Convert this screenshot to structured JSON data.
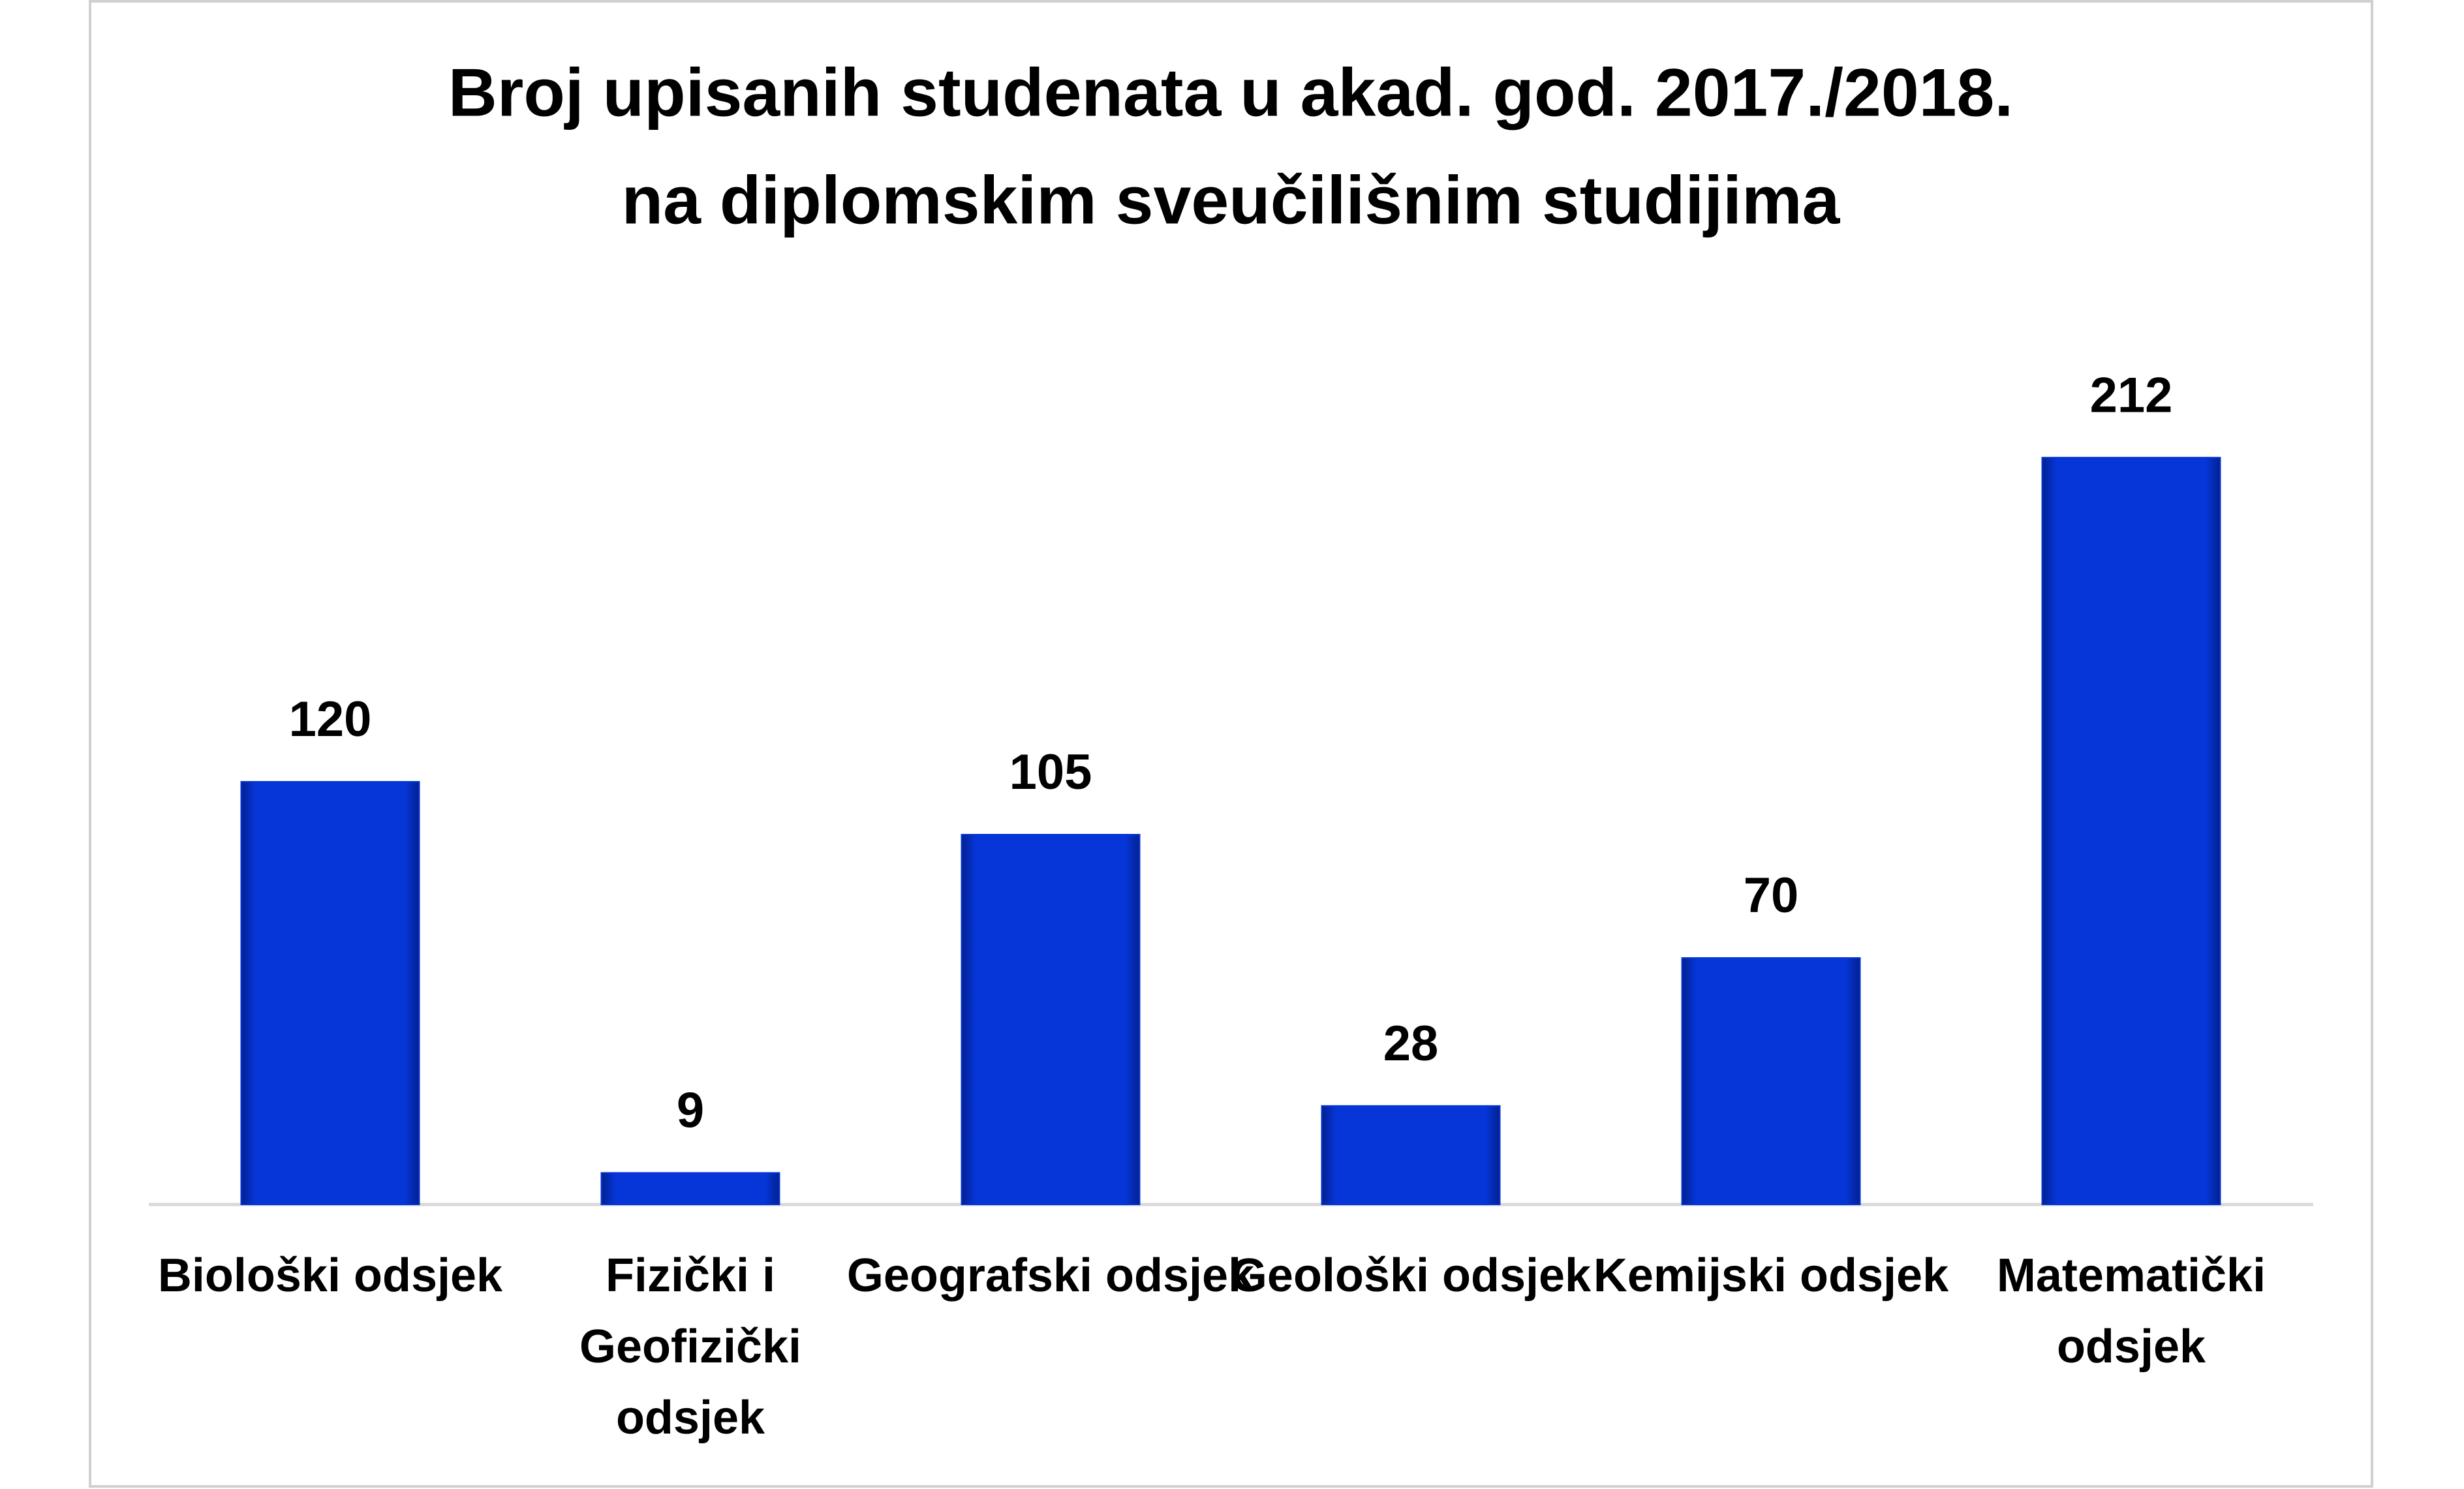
{
  "chart_data": {
    "type": "bar",
    "title": [
      "Broj upisanih studenata u akad. god. 2017./2018.",
      "na diplomskim sveučilišnim studijima"
    ],
    "categories": [
      "Biološki odsjek",
      "Fizički i Geofizički odsjek",
      "Geografski odsjek",
      "Geološki odsjek",
      "Kemijski odsjek",
      "Matematički odsjek"
    ],
    "values": [
      120,
      9,
      105,
      28,
      70,
      212
    ],
    "color": "#0636d8",
    "data_labels": true
  }
}
